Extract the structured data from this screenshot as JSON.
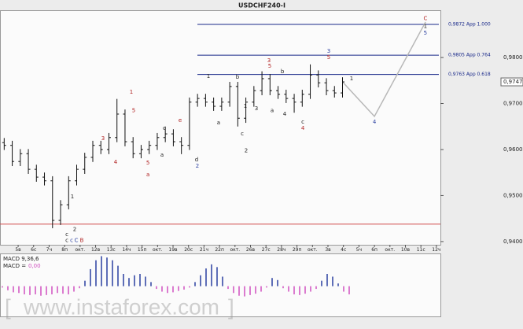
{
  "chart_data": {
    "type": "ohlc",
    "title": "USDCHF240-I",
    "xlim": [
      -1.17,
      27.26
    ],
    "xticks": [
      {
        "value": 0,
        "label": "5в"
      },
      {
        "value": 1,
        "label": "6с"
      },
      {
        "value": 2,
        "label": "7ч"
      },
      {
        "value": 3,
        "label": "8п"
      },
      {
        "value": 4,
        "label": "окт."
      },
      {
        "value": 5,
        "label": "12в"
      },
      {
        "value": 6,
        "label": "13с"
      },
      {
        "value": 7,
        "label": "14ч"
      },
      {
        "value": 8,
        "label": "15п"
      },
      {
        "value": 9,
        "label": "окт."
      },
      {
        "value": 10,
        "label": "19в"
      },
      {
        "value": 11,
        "label": "20с"
      },
      {
        "value": 12,
        "label": "21ч"
      },
      {
        "value": 13,
        "label": "22п"
      },
      {
        "value": 14,
        "label": "окт."
      },
      {
        "value": 15,
        "label": "26в"
      },
      {
        "value": 16,
        "label": "27с"
      },
      {
        "value": 17,
        "label": "28ч"
      },
      {
        "value": 18,
        "label": "29п"
      },
      {
        "value": 19,
        "label": "окт."
      },
      {
        "value": 20,
        "label": "3в"
      },
      {
        "value": 21,
        "label": "4с"
      },
      {
        "value": 22,
        "label": "5ч"
      },
      {
        "value": 23,
        "label": "6п"
      },
      {
        "value": 24,
        "label": "окт."
      },
      {
        "value": 25,
        "label": "10в"
      },
      {
        "value": 26,
        "label": "11с"
      },
      {
        "value": 27,
        "label": "12ч"
      }
    ],
    "ylim": [
      0.9393,
      0.9901
    ],
    "yticks": [
      {
        "value": 0.94,
        "label": "0,9400"
      },
      {
        "value": 0.95,
        "label": "0,9500"
      },
      {
        "value": 0.96,
        "label": "0,9600"
      },
      {
        "value": 0.97,
        "label": "0,9700"
      },
      {
        "value": 0.98,
        "label": "0,9800"
      }
    ],
    "color": "#111111",
    "x": [
      -0.9,
      -0.38,
      0.14,
      0.66,
      1.18,
      1.7,
      2.22,
      2.74,
      3.26,
      3.78,
      4.3,
      4.82,
      5.34,
      5.86,
      6.38,
      6.9,
      7.42,
      7.94,
      8.46,
      8.98,
      9.5,
      10.02,
      10.54,
      11.06,
      11.58,
      12.1,
      12.62,
      13.14,
      13.66,
      14.18,
      14.7,
      15.22,
      15.74,
      16.26,
      16.78,
      17.3,
      17.82,
      18.34,
      18.86,
      19.38,
      19.9,
      20.42,
      20.94
    ],
    "ohlc": [
      [
        0.9615,
        0.9625,
        0.9599,
        0.9609
      ],
      [
        0.9609,
        0.9619,
        0.9564,
        0.9574
      ],
      [
        0.9574,
        0.9601,
        0.9564,
        0.9591
      ],
      [
        0.9591,
        0.9601,
        0.9547,
        0.9557
      ],
      [
        0.9557,
        0.9567,
        0.953,
        0.954
      ],
      [
        0.954,
        0.955,
        0.9522,
        0.9532
      ],
      [
        0.9532,
        0.9542,
        0.9429,
        0.9446
      ],
      [
        0.9446,
        0.949,
        0.9436,
        0.948
      ],
      [
        0.948,
        0.9542,
        0.947,
        0.9532
      ],
      [
        0.9532,
        0.9567,
        0.9522,
        0.9557
      ],
      [
        0.9557,
        0.9593,
        0.9547,
        0.9583
      ],
      [
        0.9583,
        0.9619,
        0.9573,
        0.9609
      ],
      [
        0.9609,
        0.9619,
        0.959,
        0.96
      ],
      [
        0.96,
        0.9636,
        0.959,
        0.9626
      ],
      [
        0.9626,
        0.971,
        0.9616,
        0.9677
      ],
      [
        0.9677,
        0.9687,
        0.9607,
        0.9617
      ],
      [
        0.9617,
        0.9627,
        0.9581,
        0.9591
      ],
      [
        0.9591,
        0.961,
        0.9581,
        0.96
      ],
      [
        0.96,
        0.9619,
        0.959,
        0.9609
      ],
      [
        0.9609,
        0.9636,
        0.9599,
        0.9626
      ],
      [
        0.9626,
        0.965,
        0.9616,
        0.9634
      ],
      [
        0.9634,
        0.9644,
        0.9607,
        0.9617
      ],
      [
        0.9617,
        0.9627,
        0.959,
        0.9609
      ],
      [
        0.9609,
        0.9713,
        0.9599,
        0.9703
      ],
      [
        0.9703,
        0.9721,
        0.9693,
        0.9711
      ],
      [
        0.9711,
        0.9721,
        0.9693,
        0.9703
      ],
      [
        0.9703,
        0.9713,
        0.9684,
        0.9694
      ],
      [
        0.9694,
        0.9713,
        0.9684,
        0.9703
      ],
      [
        0.9703,
        0.9747,
        0.9693,
        0.9737
      ],
      [
        0.9737,
        0.9747,
        0.965,
        0.9668
      ],
      [
        0.9668,
        0.9713,
        0.9658,
        0.9703
      ],
      [
        0.9703,
        0.9738,
        0.9693,
        0.9728
      ],
      [
        0.9728,
        0.977,
        0.9718,
        0.9754
      ],
      [
        0.9754,
        0.9764,
        0.9718,
        0.9728
      ],
      [
        0.9728,
        0.9738,
        0.971,
        0.972
      ],
      [
        0.972,
        0.973,
        0.9701,
        0.9711
      ],
      [
        0.9711,
        0.9721,
        0.968,
        0.9703
      ],
      [
        0.9703,
        0.973,
        0.9693,
        0.972
      ],
      [
        0.972,
        0.9785,
        0.971,
        0.9762
      ],
      [
        0.9762,
        0.9772,
        0.9735,
        0.9745
      ],
      [
        0.9745,
        0.9755,
        0.9718,
        0.9728
      ],
      [
        0.9728,
        0.9738,
        0.9713,
        0.9723
      ],
      [
        0.9723,
        0.9757,
        0.9713,
        0.9747
      ]
    ],
    "current_price": {
      "value": 0.9747,
      "label": "0,9747"
    },
    "levels": [
      {
        "value": 0.9872,
        "label": "0,9872 App 1.000"
      },
      {
        "value": 0.9805,
        "label": "0,9805 App 0.764"
      },
      {
        "value": 0.9763,
        "label": "0,9763 App 0.618"
      }
    ],
    "support": 0.9438,
    "projection": {
      "x": [
        20.94,
        23.0,
        26.3
      ],
      "y": [
        0.9747,
        0.9672,
        0.9877
      ]
    },
    "annotations": [
      {
        "text": "c",
        "color": "#222222",
        "x": 3.15,
        "y": 0.9415
      },
      {
        "text": "c",
        "color": "#222222",
        "x": 3.15,
        "y": 0.9402
      },
      {
        "text": "c",
        "color": "#2a3fa0",
        "x": 3.45,
        "y": 0.9402
      },
      {
        "text": "C",
        "color": "#2a3fa0",
        "x": 3.76,
        "y": 0.9402
      },
      {
        "text": "B",
        "color": "#b02020",
        "x": 4.11,
        "y": 0.9402
      },
      {
        "text": "1",
        "color": "#222222",
        "x": 3.5,
        "y": 0.9497
      },
      {
        "text": "2",
        "color": "#222222",
        "x": 3.65,
        "y": 0.9426
      },
      {
        "text": "3",
        "color": "#b02020",
        "x": 5.48,
        "y": 0.9624
      },
      {
        "text": "4",
        "color": "#b02020",
        "x": 6.29,
        "y": 0.9573
      },
      {
        "text": "1",
        "color": "#b02020",
        "x": 7.31,
        "y": 0.9725
      },
      {
        "text": "5",
        "color": "#b02020",
        "x": 7.46,
        "y": 0.9685
      },
      {
        "text": "5",
        "color": "#b02020",
        "x": 8.38,
        "y": 0.9571
      },
      {
        "text": "a",
        "color": "#b02020",
        "x": 8.38,
        "y": 0.9545
      },
      {
        "text": "c",
        "color": "#222222",
        "x": 9.44,
        "y": 0.9646
      },
      {
        "text": "a",
        "color": "#222222",
        "x": 9.29,
        "y": 0.9588
      },
      {
        "text": "e",
        "color": "#b02020",
        "x": 10.46,
        "y": 0.9663
      },
      {
        "text": "d",
        "color": "#222222",
        "x": 11.52,
        "y": 0.9578
      },
      {
        "text": "2",
        "color": "#2a3fa0",
        "x": 11.57,
        "y": 0.9564
      },
      {
        "text": "1",
        "color": "#222222",
        "x": 12.28,
        "y": 0.9759
      },
      {
        "text": "a",
        "color": "#222222",
        "x": 12.94,
        "y": 0.9658
      },
      {
        "text": "b",
        "color": "#222222",
        "x": 14.16,
        "y": 0.9757
      },
      {
        "text": "1",
        "color": "#222222",
        "x": 14.67,
        "y": 0.9694
      },
      {
        "text": "c",
        "color": "#222222",
        "x": 14.47,
        "y": 0.9634
      },
      {
        "text": "2",
        "color": "#222222",
        "x": 14.72,
        "y": 0.9597
      },
      {
        "text": "3",
        "color": "#222222",
        "x": 15.38,
        "y": 0.9689
      },
      {
        "text": "3",
        "color": "#b02020",
        "x": 16.19,
        "y": 0.9793
      },
      {
        "text": "5",
        "color": "#b02020",
        "x": 16.24,
        "y": 0.9781
      },
      {
        "text": "a",
        "color": "#222222",
        "x": 16.4,
        "y": 0.9685
      },
      {
        "text": "b",
        "color": "#222222",
        "x": 17.06,
        "y": 0.9769
      },
      {
        "text": "4",
        "color": "#222222",
        "x": 17.21,
        "y": 0.9677
      },
      {
        "text": "c",
        "color": "#222222",
        "x": 18.38,
        "y": 0.966
      },
      {
        "text": "4",
        "color": "#b02020",
        "x": 18.38,
        "y": 0.9646
      },
      {
        "text": "3",
        "color": "#2a3fa0",
        "x": 20.05,
        "y": 0.9814
      },
      {
        "text": "5",
        "color": "#b02020",
        "x": 20.05,
        "y": 0.98
      },
      {
        "text": "1",
        "color": "#222222",
        "x": 21.52,
        "y": 0.9754
      },
      {
        "text": "4",
        "color": "#2a3fa0",
        "x": 23.0,
        "y": 0.966
      },
      {
        "text": "C",
        "color": "#b02020",
        "x": 26.29,
        "y": 0.9885
      },
      {
        "text": "1",
        "color": "#222222",
        "x": 26.29,
        "y": 0.9868
      },
      {
        "text": "5",
        "color": "#2a3fa0",
        "x": 26.29,
        "y": 0.9853
      }
    ],
    "macd": {
      "label": "MACD 9,36,6",
      "line_label": "MACD =",
      "value": {
        "value": 0,
        "label": "0,00"
      },
      "ylim": [
        -0.0042,
        0.0048
      ],
      "positive_color": "#2a3fa0",
      "negative_color": "#d050c0",
      "values": [
        -0.0002,
        -0.0006,
        -0.0009,
        -0.001,
        -0.0012,
        -0.0013,
        -0.0012,
        -0.0014,
        -0.0013,
        -0.0012,
        -0.001,
        -0.0011,
        -0.0012,
        -0.0008,
        -0.0003,
        0.0008,
        0.0025,
        0.0038,
        0.0044,
        0.0042,
        0.0038,
        0.003,
        0.0018,
        0.0012,
        0.0016,
        0.0018,
        0.0014,
        0.0006,
        -0.0004,
        -0.0008,
        -0.001,
        -0.0009,
        -0.0007,
        -0.0005,
        -0.0002,
        0.0006,
        0.0016,
        0.0026,
        0.0032,
        0.0028,
        0.0014,
        -0.0004,
        -0.001,
        -0.0014,
        -0.0015,
        -0.0013,
        -0.0011,
        -0.0008,
        -0.0002,
        0.0012,
        0.0009,
        -0.0003,
        -0.0008,
        -0.0012,
        -0.0013,
        -0.0011,
        -0.0008,
        -0.0004,
        0.0008,
        0.0018,
        0.0014,
        0.0004,
        -0.0008,
        -0.0012
      ]
    },
    "watermark": {
      "open": "[",
      "text": "www.instaforex.com",
      "close": "]"
    }
  }
}
